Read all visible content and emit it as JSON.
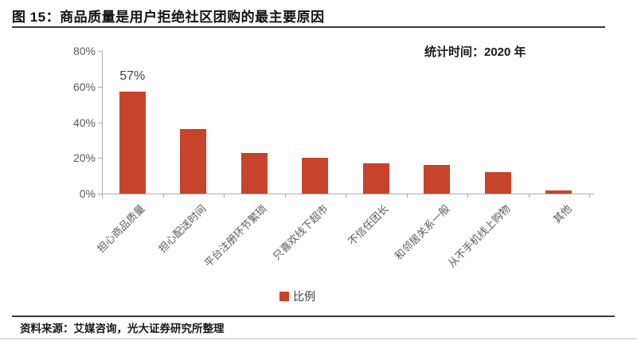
{
  "figure": {
    "title": "图 15：商品质量是用户拒绝社区团购的最主要原因",
    "stat_time": "统计时间：2020 年",
    "source": "资料来源：艾媒咨询，光大证券研究所整理"
  },
  "legend": {
    "label": "比例",
    "swatch_color": "#c8432b"
  },
  "chart_data": {
    "type": "bar",
    "title": "商品质量是用户拒绝社区团购的最主要原因",
    "categories": [
      "担心商品质量",
      "担心配送时间",
      "平台注册环节繁琐",
      "只喜欢线下超市",
      "不信任团长",
      "和邻居关系一般",
      "从不手机线上购物",
      "其他"
    ],
    "values": [
      57,
      36,
      23,
      20,
      17,
      16,
      12,
      2
    ],
    "series_name": "比例",
    "unit": "%",
    "ylim": [
      0,
      80
    ],
    "yticks": [
      "0%",
      "20%",
      "40%",
      "60%",
      "80%"
    ],
    "ytick_values": [
      0,
      20,
      40,
      60,
      80
    ],
    "data_labels": {
      "0": "57%"
    },
    "bar_color": "#c8432b",
    "grid": false,
    "legend_position": "bottom"
  }
}
